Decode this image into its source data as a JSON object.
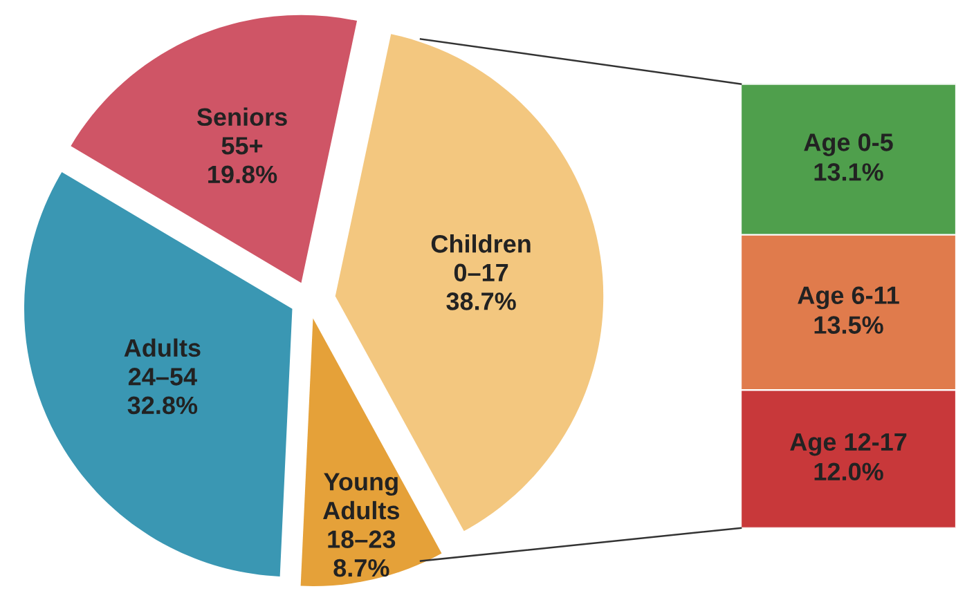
{
  "chart_data": [
    {
      "type": "pie",
      "categories": [
        "Children\n0–17",
        "Young\nAdults\n18–23",
        "Adults\n24–54",
        "Seniors\n55+"
      ],
      "values": [
        38.7,
        8.7,
        32.8,
        19.8
      ],
      "colors": [
        "#f3c77f",
        "#e5a139",
        "#3a97b3",
        "#cf5566"
      ],
      "value_labels": [
        "38.7%",
        "8.7%",
        "32.8%",
        "19.8%"
      ]
    },
    {
      "type": "bar",
      "stacked": true,
      "categories": [
        null
      ],
      "series": [
        {
          "name": "Age 12-17",
          "color": "#c8383a",
          "values": [
            12.0
          ],
          "value_labels": [
            "12.0%"
          ]
        },
        {
          "name": "Age 6-11",
          "color": "#e07b4c",
          "values": [
            13.5
          ],
          "value_labels": [
            "13.5%"
          ]
        },
        {
          "name": "Age 0-5",
          "color": "#4f9f4c",
          "values": [
            13.1
          ],
          "value_labels": [
            "13.1%"
          ]
        }
      ]
    }
  ]
}
